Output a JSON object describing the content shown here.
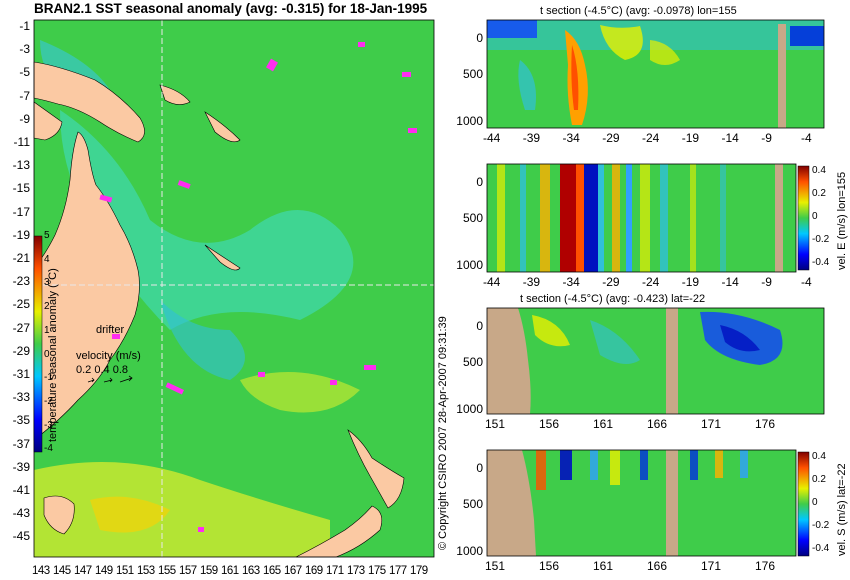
{
  "map": {
    "title": "BRAN2.1 SST seasonal anomaly (avg: -0.315) for 18-Jan-1995",
    "lat_ticks": [
      "-1",
      "-3",
      "-5",
      "-7",
      "-9",
      "-11",
      "-13",
      "-15",
      "-17",
      "-19",
      "-21",
      "-23",
      "-25",
      "-27",
      "-29",
      "-31",
      "-33",
      "-35",
      "-37",
      "-39",
      "-41",
      "-43",
      "-45"
    ],
    "lon_ticks": [
      "143",
      "145",
      "147",
      "149",
      "151",
      "153",
      "155",
      "157",
      "159",
      "161",
      "163",
      "165",
      "167",
      "169",
      "171",
      "173",
      "175",
      "177",
      "179"
    ],
    "colorbar_ticks": [
      "5",
      "4",
      "3",
      "2",
      "1",
      "0",
      "-1",
      "-2",
      "-3",
      "-4"
    ],
    "colorbar_label": "temperature seasonal anomaly (°C)",
    "drifter_label": "drifter",
    "velocity_label": "velocity (m/s)",
    "velocity_scale": "0.2 0.4 0.8",
    "copyright": "© Copyright CSIRO 2007  28-Apr-2007 09:31:39",
    "colors": {
      "ocean": "#3fcc4a",
      "land": "#fbc9a3",
      "drifter": "#ff2cf0",
      "crosshair": "#e8e8e8"
    }
  },
  "panels": [
    {
      "title": "t section (-4.5°C) (avg: -0.0978) lon=155",
      "x_ticks": [
        "-44",
        "-39",
        "-34",
        "-29",
        "-24",
        "-19",
        "-14",
        "-9",
        "-4"
      ],
      "y_ticks": [
        "0",
        "500",
        "1000"
      ]
    },
    {
      "title": "",
      "x_ticks": [
        "-44",
        "-39",
        "-34",
        "-29",
        "-24",
        "-19",
        "-14",
        "-9",
        "-4"
      ],
      "y_ticks": [
        "0",
        "500",
        "1000"
      ],
      "colorbar_ticks": [
        "0.4",
        "0.2",
        "0",
        "-0.2",
        "-0.4"
      ],
      "colorbar_label": "vel. E (m/s) lon=155"
    },
    {
      "title": "t section (-4.5°C) (avg: -0.423) lat=-22",
      "x_ticks": [
        "151",
        "156",
        "161",
        "166",
        "171",
        "176"
      ],
      "y_ticks": [
        "0",
        "500",
        "1000"
      ]
    },
    {
      "title": "",
      "x_ticks": [
        "151",
        "156",
        "161",
        "166",
        "171",
        "176"
      ],
      "y_ticks": [
        "0",
        "500",
        "1000"
      ],
      "colorbar_ticks": [
        "0.4",
        "0.2",
        "0",
        "-0.2",
        "-0.4"
      ],
      "colorbar_label": "vel. S (m/s) lat=-22"
    }
  ],
  "chart_data": [
    {
      "type": "heatmap",
      "title": "BRAN2.1 SST seasonal anomaly (avg: -0.315) for 18-Jan-1995",
      "x_axis": "longitude",
      "xlim": [
        143,
        179
      ],
      "y_axis": "latitude",
      "ylim": [
        -45,
        -1
      ],
      "colorbar": {
        "label": "temperature seasonal anomaly (°C)",
        "range": [
          -4,
          5
        ]
      },
      "crosshair": {
        "lon": 155,
        "lat": -22
      }
    },
    {
      "type": "heatmap",
      "title": "t section (-4.5°C) (avg: -0.0978) lon=155",
      "xlim": [
        -45,
        0
      ],
      "ylim": [
        1050,
        0
      ]
    },
    {
      "type": "heatmap",
      "xlim": [
        -45,
        0
      ],
      "ylim": [
        1050,
        0
      ],
      "colorbar": {
        "label": "vel. E (m/s) lon=155",
        "range": [
          -0.4,
          0.4
        ]
      }
    },
    {
      "type": "heatmap",
      "title": "t section (-4.5°C) (avg: -0.423) lat=-22",
      "xlim": [
        150,
        180
      ],
      "ylim": [
        1050,
        0
      ]
    },
    {
      "type": "heatmap",
      "xlim": [
        150,
        180
      ],
      "ylim": [
        1050,
        0
      ],
      "colorbar": {
        "label": "vel. S (m/s) lat=-22",
        "range": [
          -0.4,
          0.4
        ]
      }
    }
  ]
}
